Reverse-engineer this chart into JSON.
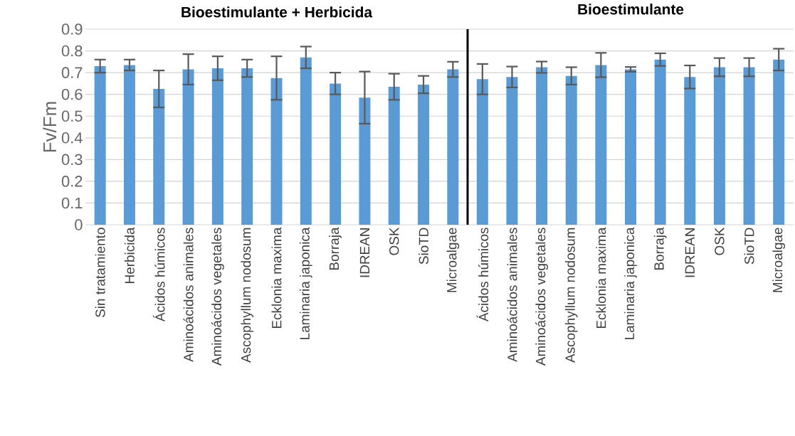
{
  "chart_data": [
    {
      "type": "bar",
      "title": "Bioestimulante + Herbicida",
      "ylabel": "Fv/Fm",
      "categories": [
        "Sin tratamiento",
        "Herbicida",
        "Ácidos húmicos",
        "Aminoácidos animales",
        "Aminoácidos vegetales",
        "Ascophyllum nodosum",
        "Ecklonia maxima",
        "Laminaria japonica",
        "Borraja",
        "IDREAN",
        "OSK",
        "SioTD",
        "Microalgae"
      ],
      "values": [
        0.73,
        0.735,
        0.625,
        0.715,
        0.72,
        0.72,
        0.675,
        0.77,
        0.65,
        0.585,
        0.635,
        0.645,
        0.715
      ],
      "errors": [
        0.03,
        0.025,
        0.085,
        0.07,
        0.055,
        0.04,
        0.1,
        0.05,
        0.05,
        0.12,
        0.06,
        0.04,
        0.035
      ],
      "color": "#5b9bd5",
      "ylim": [
        0,
        0.9
      ],
      "yticks": [
        0,
        0.1,
        0.2,
        0.3,
        0.4,
        0.5,
        0.6,
        0.7,
        0.8,
        0.9
      ],
      "grid": "y"
    },
    {
      "type": "bar",
      "title": "Bioestimulante",
      "categories": [
        "Ácidos húmicos",
        "Aminoácidos animales",
        "Aminoácidos vegetales",
        "Ascophyllum nodosum",
        "Ecklonia maxima",
        "Laminaria japonica",
        "Borraja",
        "IDREAN",
        "OSK",
        "SioTD",
        "Microalgae"
      ],
      "values": [
        0.67,
        0.68,
        0.725,
        0.685,
        0.735,
        0.715,
        0.76,
        0.68,
        0.725,
        0.725,
        0.76
      ],
      "errors": [
        0.07,
        0.048,
        0.026,
        0.04,
        0.056,
        0.011,
        0.029,
        0.053,
        0.042,
        0.042,
        0.05
      ],
      "color": "#5b9bd5",
      "ylim": [
        0,
        0.9
      ],
      "yticks": [
        0,
        0.1,
        0.2,
        0.3,
        0.4,
        0.5,
        0.6,
        0.7,
        0.8,
        0.9
      ],
      "grid": "y",
      "tick_labels": "x"
    }
  ]
}
